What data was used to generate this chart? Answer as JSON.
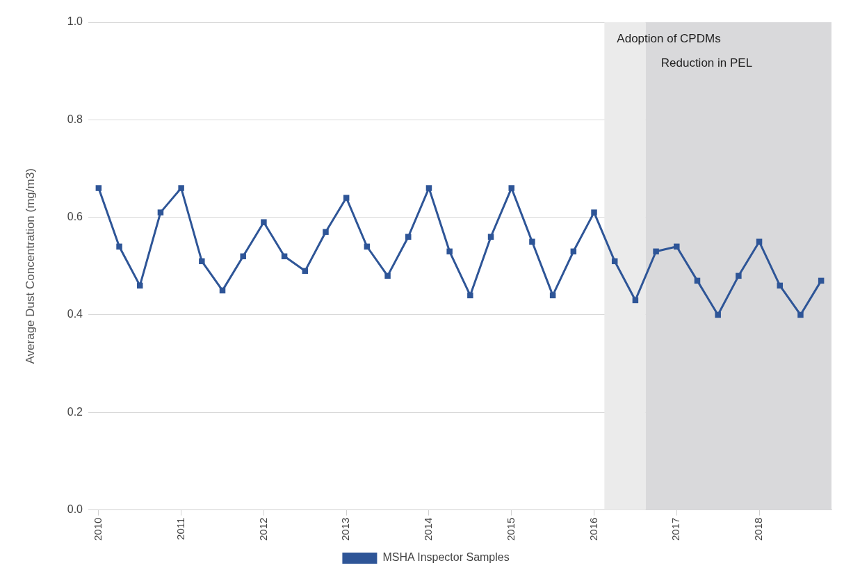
{
  "chart_data": {
    "type": "line",
    "ylabel": "Average Dust Concentration (mg/m3)",
    "x": [
      2010,
      2010.25,
      2010.5,
      2010.75,
      2011,
      2011.25,
      2011.5,
      2011.75,
      2012,
      2012.25,
      2012.5,
      2012.75,
      2013,
      2013.25,
      2013.5,
      2013.75,
      2014,
      2014.25,
      2014.5,
      2014.75,
      2015,
      2015.25,
      2015.5,
      2015.75,
      2016,
      2016.25,
      2016.5,
      2016.75,
      2017,
      2017.25,
      2017.5,
      2017.75,
      2018,
      2018.25,
      2018.5,
      2018.75
    ],
    "series": [
      {
        "name": "MSHA Inspector Samples",
        "color": "#2e5597",
        "values": [
          0.66,
          0.54,
          0.46,
          0.61,
          0.66,
          0.51,
          0.45,
          0.52,
          0.59,
          0.52,
          0.49,
          0.57,
          0.64,
          0.54,
          0.48,
          0.56,
          0.66,
          0.53,
          0.44,
          0.56,
          0.66,
          0.55,
          0.44,
          0.53,
          0.61,
          0.51,
          0.43,
          0.53,
          0.54,
          0.47,
          0.4,
          0.48,
          0.55,
          0.46,
          0.4,
          0.47
        ]
      }
    ],
    "xlim": [
      2009.875,
      2018.875
    ],
    "xticks": [
      2010,
      2011,
      2012,
      2013,
      2014,
      2015,
      2016,
      2017,
      2018
    ],
    "ylim": [
      0,
      1
    ],
    "yticks": [
      {
        "value": 0,
        "label": "0.0"
      },
      {
        "value": 0.2,
        "label": "0.2"
      },
      {
        "value": 0.4,
        "label": "0.4"
      },
      {
        "value": 0.6,
        "label": "0.6"
      },
      {
        "value": 0.8,
        "label": "0.8"
      },
      {
        "value": 1,
        "label": "1.0"
      }
    ],
    "bands": [
      {
        "axis": "x",
        "from": 2016.125,
        "to": 2016.625,
        "label": "Adoption of CPDMs",
        "color": "#ebebeb"
      },
      {
        "axis": "x",
        "from": 2016.625,
        "to": 2018.875,
        "label": "Reduction in PEL",
        "color": "#d9d9db"
      }
    ],
    "grid": "y",
    "legend": "bottom",
    "marker": "square",
    "line_style": "solid"
  }
}
